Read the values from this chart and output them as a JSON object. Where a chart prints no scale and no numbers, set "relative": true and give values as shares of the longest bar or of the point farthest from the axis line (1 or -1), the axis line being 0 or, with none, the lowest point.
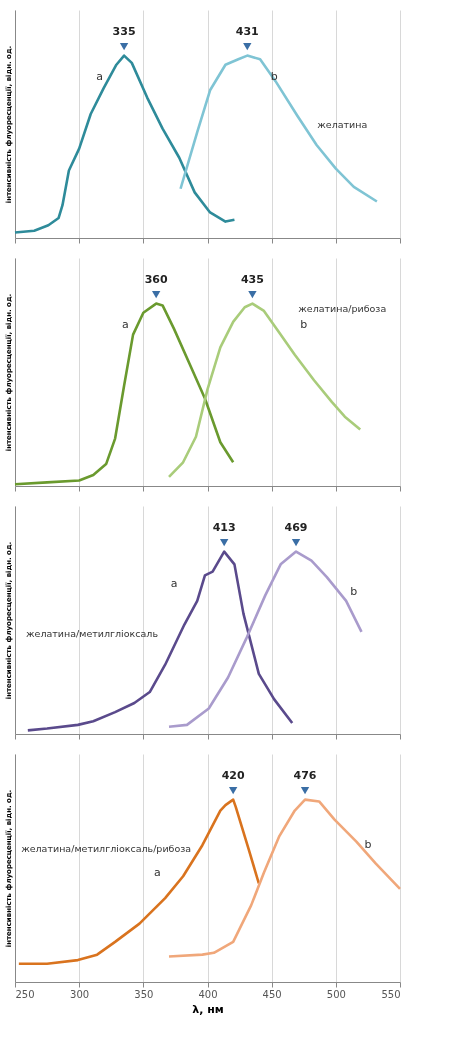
{
  "chart_data": [
    {
      "type": "line",
      "relative": true,
      "ylabel": "інтенсивність флуоресценції, відн. од.",
      "xlim": [
        250,
        550
      ],
      "xticks": [
        250,
        300,
        350,
        400,
        450,
        500,
        550
      ],
      "tick_labels": false,
      "grid": "x",
      "line_style": "solid",
      "marker": "none",
      "series": [
        {
          "name": "a",
          "color": "#2e8b9a",
          "x": [
            250,
            265,
            276,
            284,
            287,
            292,
            300,
            309,
            319,
            329,
            335,
            341,
            353,
            365,
            378,
            390,
            402,
            414,
            421
          ],
          "values": [
            0.03,
            0.04,
            0.07,
            0.11,
            0.18,
            0.37,
            0.49,
            0.68,
            0.82,
            0.95,
            1.0,
            0.96,
            0.77,
            0.6,
            0.44,
            0.25,
            0.14,
            0.09,
            0.1
          ]
        },
        {
          "name": "b",
          "color": "#7fc4d4",
          "x": [
            379,
            392,
            402,
            414,
            424,
            431,
            441,
            453,
            470,
            485,
            500,
            514,
            532
          ],
          "values": [
            0.27,
            0.58,
            0.81,
            0.95,
            0.98,
            1.0,
            0.98,
            0.86,
            0.67,
            0.51,
            0.38,
            0.28,
            0.2
          ]
        }
      ],
      "annotations": [
        {
          "text": "335",
          "x": 335,
          "y": 1.0
        },
        {
          "text": "431",
          "x": 431,
          "y": 1.0
        },
        "желатина"
      ]
    },
    {
      "type": "line",
      "relative": true,
      "ylabel": "інтенсивність флуоресценції, відн. од.",
      "xlim": [
        250,
        550
      ],
      "xticks": [
        250,
        300,
        350,
        400,
        450,
        500,
        550
      ],
      "tick_labels": false,
      "grid": "x",
      "line_style": "solid",
      "marker": "none",
      "series": [
        {
          "name": "a",
          "color": "#6a9a2e",
          "x": [
            250,
            275,
            300,
            311,
            321,
            328,
            335,
            342,
            350,
            360,
            365,
            374,
            386,
            398,
            410,
            420
          ],
          "values": [
            0.01,
            0.02,
            0.03,
            0.06,
            0.12,
            0.26,
            0.55,
            0.83,
            0.95,
            1.0,
            0.99,
            0.86,
            0.67,
            0.48,
            0.24,
            0.13
          ]
        },
        {
          "name": "b",
          "color": "#a9cc7a",
          "x": [
            370,
            381,
            391,
            400,
            410,
            420,
            429,
            435,
            444,
            456,
            468,
            483,
            497,
            507,
            519
          ],
          "values": [
            0.05,
            0.13,
            0.27,
            0.53,
            0.76,
            0.9,
            0.98,
            1.0,
            0.96,
            0.84,
            0.72,
            0.58,
            0.46,
            0.38,
            0.31
          ]
        }
      ],
      "annotations": [
        {
          "text": "360",
          "x": 360,
          "y": 1.0
        },
        {
          "text": "435",
          "x": 435,
          "y": 1.0
        },
        "желатина/рибоза"
      ]
    },
    {
      "type": "line",
      "relative": true,
      "ylabel": "інтенсивність флуоресценції, відн. од.",
      "xlim": [
        250,
        550
      ],
      "xticks": [
        250,
        300,
        350,
        400,
        450,
        500,
        550
      ],
      "tick_labels": false,
      "grid": "x",
      "line_style": "solid",
      "marker": "none",
      "series": [
        {
          "name": "a",
          "color": "#5a4a8c",
          "x": [
            260,
            275,
            299,
            311,
            328,
            343,
            355,
            367,
            382,
            392,
            398,
            404,
            413,
            421,
            428,
            440,
            452,
            466
          ],
          "values": [
            0.02,
            0.03,
            0.05,
            0.07,
            0.12,
            0.17,
            0.23,
            0.38,
            0.6,
            0.73,
            0.87,
            0.89,
            1.0,
            0.93,
            0.66,
            0.33,
            0.19,
            0.06
          ]
        },
        {
          "name": "b",
          "color": "#a99bcc",
          "x": [
            370,
            384,
            401,
            416,
            430,
            445,
            457,
            469,
            481,
            493,
            508,
            520
          ],
          "values": [
            0.04,
            0.05,
            0.14,
            0.31,
            0.52,
            0.76,
            0.93,
            1.0,
            0.95,
            0.86,
            0.73,
            0.56
          ]
        }
      ],
      "annotations": [
        {
          "text": "413",
          "x": 413,
          "y": 1.0
        },
        {
          "text": "469",
          "x": 469,
          "y": 1.0
        },
        "желатина/метилгліоксаль"
      ]
    },
    {
      "type": "line",
      "relative": true,
      "ylabel": "інтенсивність флуоресценції, відн. од.",
      "xlabel": "λ, нм",
      "xlim": [
        250,
        550
      ],
      "xticks": [
        250,
        300,
        350,
        400,
        450,
        500,
        550
      ],
      "tick_labels": "x",
      "grid": "x",
      "line_style": "solid",
      "marker": "none",
      "series": [
        {
          "name": "a",
          "color": "#d9731e",
          "x": [
            253,
            275,
            299,
            314,
            328,
            347,
            367,
            381,
            396,
            410,
            414,
            420,
            422,
            432,
            440
          ],
          "values": [
            0.1,
            0.1,
            0.12,
            0.15,
            0.22,
            0.32,
            0.46,
            0.58,
            0.75,
            0.94,
            0.97,
            1.0,
            0.96,
            0.73,
            0.54
          ]
        },
        {
          "name": "b",
          "color": "#f0a77a",
          "x": [
            370,
            396,
            405,
            420,
            434,
            444,
            456,
            468,
            476,
            487,
            499,
            516,
            531,
            550
          ],
          "values": [
            0.14,
            0.15,
            0.16,
            0.22,
            0.42,
            0.6,
            0.8,
            0.94,
            1.0,
            0.99,
            0.89,
            0.77,
            0.65,
            0.51
          ]
        }
      ],
      "annotations": [
        {
          "text": "420",
          "x": 420,
          "y": 1.0
        },
        {
          "text": "476",
          "x": 476,
          "y": 1.0
        },
        "желатина/метилгліоксаль/рибоза"
      ]
    }
  ]
}
